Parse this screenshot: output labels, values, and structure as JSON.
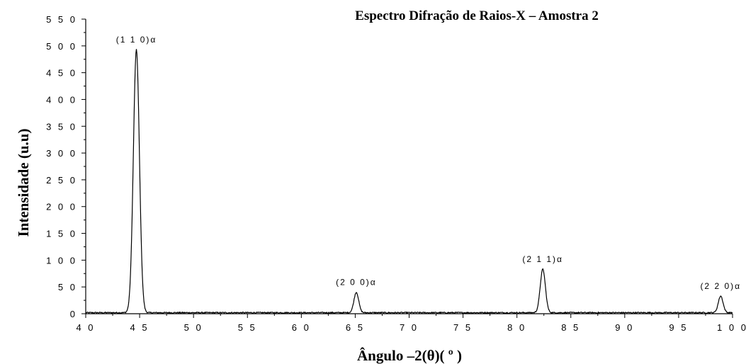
{
  "chart_data": {
    "type": "line",
    "title": "Espectro Difração de Raios-X – Amostra 2",
    "xlabel": "Ângulo –2(θ)( º )",
    "ylabel": "Intensidade (u.u)",
    "xlim": [
      40,
      100
    ],
    "ylim": [
      0,
      550
    ],
    "xticks": [
      "4 0",
      "4 5",
      "5 0",
      "5 5",
      "6 0",
      "6 5",
      "7 0",
      "7 5",
      "8 0",
      "8 5",
      "9 0",
      "9 5",
      "1 0 0"
    ],
    "yticks": [
      "0",
      "5 0",
      "1 0 0",
      "1 5 0",
      "2 0 0",
      "2 5 0",
      "3 0 0",
      "3 5 0",
      "4 0 0",
      "4 5 0",
      "5 0 0",
      "5 5 0"
    ],
    "baseline": 2,
    "grid": false,
    "peaks": [
      {
        "label": "(1 1 0)α",
        "x": 44.7,
        "y": 493
      },
      {
        "label": "(2 0 0)α",
        "x": 65.1,
        "y": 40
      },
      {
        "label": "(2 1 1)α",
        "x": 82.4,
        "y": 83
      },
      {
        "label": "(2 2 0)α",
        "x": 98.9,
        "y": 33
      }
    ]
  }
}
